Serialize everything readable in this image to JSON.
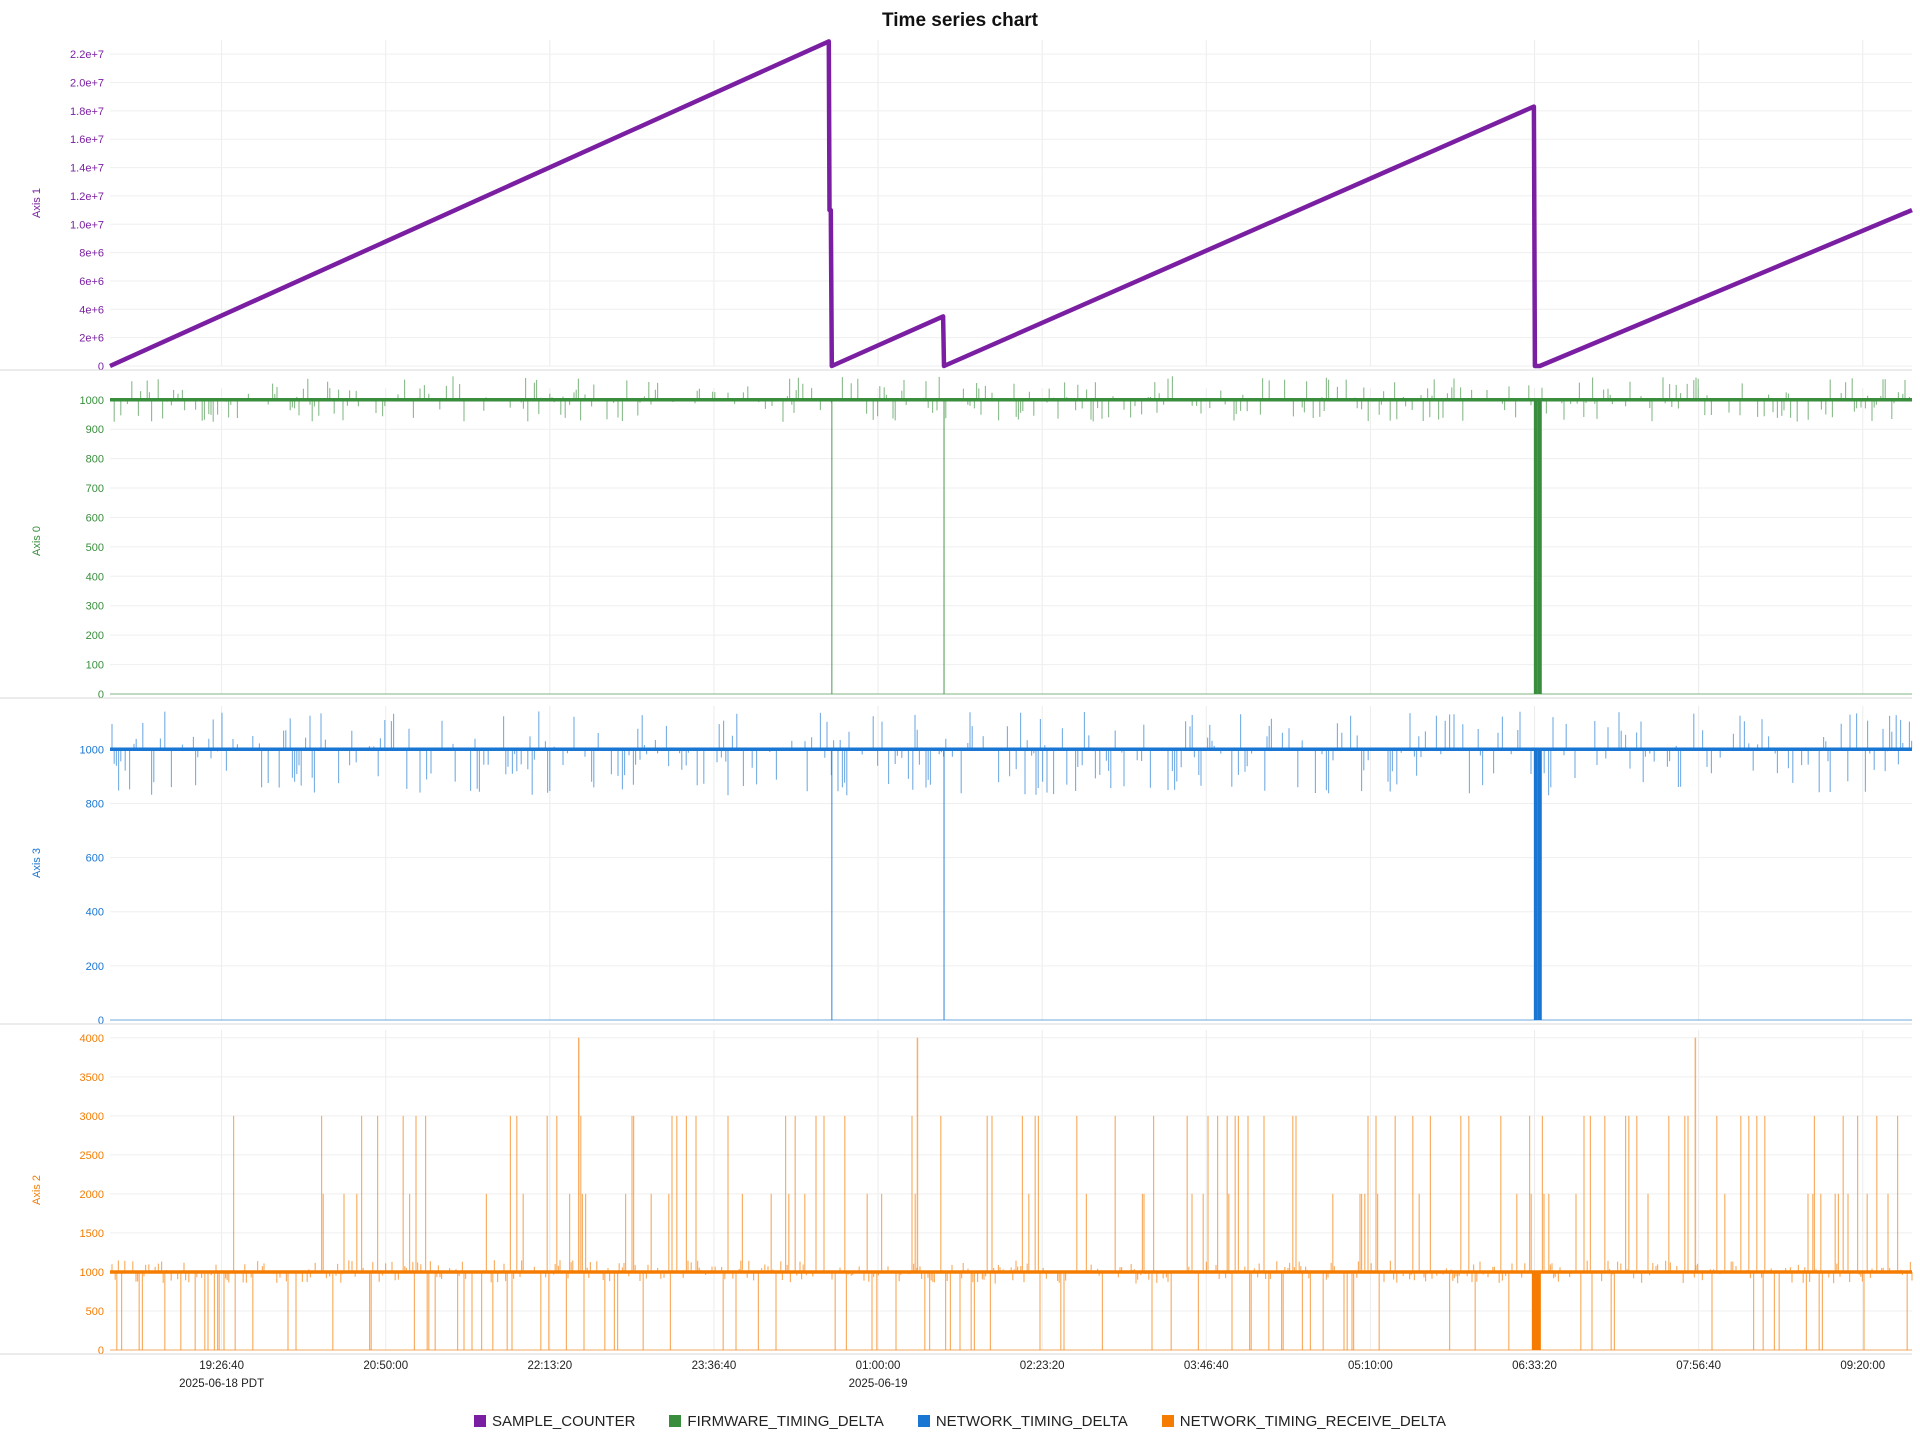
{
  "chart_data": {
    "type": "line",
    "title": "Time series chart",
    "x": {
      "type": "time",
      "range": [
        "2025-06-18T18:30:00",
        "2025-06-19T09:45:00"
      ],
      "ticks": [
        {
          "t": "2025-06-18T19:26:40",
          "label": "19:26:40",
          "sublabel": "2025-06-18 PDT"
        },
        {
          "t": "2025-06-18T20:50:00",
          "label": "20:50:00",
          "sublabel": ""
        },
        {
          "t": "2025-06-18T22:13:20",
          "label": "22:13:20",
          "sublabel": ""
        },
        {
          "t": "2025-06-18T23:36:40",
          "label": "23:36:40",
          "sublabel": ""
        },
        {
          "t": "2025-06-19T01:00:00",
          "label": "01:00:00",
          "sublabel": "2025-06-19"
        },
        {
          "t": "2025-06-19T02:23:20",
          "label": "02:23:20",
          "sublabel": ""
        },
        {
          "t": "2025-06-19T03:46:40",
          "label": "03:46:40",
          "sublabel": ""
        },
        {
          "t": "2025-06-19T05:10:00",
          "label": "05:10:00",
          "sublabel": ""
        },
        {
          "t": "2025-06-19T06:33:20",
          "label": "06:33:20",
          "sublabel": ""
        },
        {
          "t": "2025-06-19T07:56:40",
          "label": "07:56:40",
          "sublabel": ""
        },
        {
          "t": "2025-06-19T09:20:00",
          "label": "09:20:00",
          "sublabel": ""
        }
      ]
    },
    "grid": true,
    "legend_position": "bottom",
    "series": [
      {
        "name": "SAMPLE_COUNTER",
        "color": "#7b1fa2",
        "axis_label": "Axis 1",
        "ylim": [
          0,
          23000000
        ],
        "yticks": [
          {
            "v": 0,
            "label": "0"
          },
          {
            "v": 2000000,
            "label": "2e+6"
          },
          {
            "v": 4000000,
            "label": "4e+6"
          },
          {
            "v": 6000000,
            "label": "6e+6"
          },
          {
            "v": 8000000,
            "label": "8e+6"
          },
          {
            "v": 10000000,
            "label": "1.0e+7"
          },
          {
            "v": 12000000,
            "label": "1.2e+7"
          },
          {
            "v": 14000000,
            "label": "1.4e+7"
          },
          {
            "v": 16000000,
            "label": "1.6e+7"
          },
          {
            "v": 18000000,
            "label": "1.8e+7"
          },
          {
            "v": 20000000,
            "label": "2.0e+7"
          },
          {
            "v": 22000000,
            "label": "2.2e+7"
          }
        ],
        "points": [
          [
            "2025-06-18T18:30:00",
            0
          ],
          [
            "2025-06-19T00:35:00",
            22900000
          ],
          [
            "2025-06-19T00:35:20",
            11000000
          ],
          [
            "2025-06-19T00:36:00",
            11000000
          ],
          [
            "2025-06-19T00:36:30",
            0
          ],
          [
            "2025-06-19T01:33:00",
            3500000
          ],
          [
            "2025-06-19T01:33:30",
            0
          ],
          [
            "2025-06-19T06:33:00",
            18300000
          ],
          [
            "2025-06-19T06:33:30",
            0
          ],
          [
            "2025-06-19T06:36:00",
            0
          ],
          [
            "2025-06-19T09:45:00",
            11000000
          ]
        ]
      },
      {
        "name": "FIRMWARE_TIMING_DELTA",
        "color": "#388e3c",
        "axis_label": "Axis 0",
        "ylim": [
          0,
          1040
        ],
        "yticks": [
          {
            "v": 0,
            "label": "0"
          },
          {
            "v": 100,
            "label": "100"
          },
          {
            "v": 200,
            "label": "200"
          },
          {
            "v": 300,
            "label": "300"
          },
          {
            "v": 400,
            "label": "400"
          },
          {
            "v": 500,
            "label": "500"
          },
          {
            "v": 600,
            "label": "600"
          },
          {
            "v": 700,
            "label": "700"
          },
          {
            "v": 800,
            "label": "800"
          },
          {
            "v": 900,
            "label": "900"
          },
          {
            "v": 1000,
            "label": "1000"
          }
        ],
        "baseline": 1000,
        "jitter_range": [
          925,
          1080
        ],
        "drops_to_zero": [
          "2025-06-19T00:36:30",
          "2025-06-19T01:33:30",
          "2025-06-19T06:34:00",
          "2025-06-19T06:36:00"
        ]
      },
      {
        "name": "NETWORK_TIMING_DELTA",
        "color": "#1976d2",
        "axis_label": "Axis 3",
        "ylim": [
          0,
          1160
        ],
        "yticks": [
          {
            "v": 0,
            "label": "0"
          },
          {
            "v": 200,
            "label": "200"
          },
          {
            "v": 400,
            "label": "400"
          },
          {
            "v": 600,
            "label": "600"
          },
          {
            "v": 800,
            "label": "800"
          },
          {
            "v": 1000,
            "label": "1000"
          }
        ],
        "baseline": 1000,
        "jitter_range": [
          830,
          1140
        ],
        "drops_to_zero": [
          "2025-06-19T00:36:30",
          "2025-06-19T01:33:30",
          "2025-06-19T06:34:00",
          "2025-06-19T06:36:00"
        ]
      },
      {
        "name": "NETWORK_TIMING_RECEIVE_DELTA",
        "color": "#f57c00",
        "axis_label": "Axis 2",
        "ylim": [
          0,
          4100
        ],
        "yticks": [
          {
            "v": 0,
            "label": "0"
          },
          {
            "v": 500,
            "label": "500"
          },
          {
            "v": 1000,
            "label": "1000"
          },
          {
            "v": 1500,
            "label": "1500"
          },
          {
            "v": 2000,
            "label": "2000"
          },
          {
            "v": 2500,
            "label": "2500"
          },
          {
            "v": 3000,
            "label": "3000"
          },
          {
            "v": 3500,
            "label": "3500"
          },
          {
            "v": 4000,
            "label": "4000"
          }
        ],
        "baseline": 1000,
        "spike_levels": [
          0,
          2000,
          3000,
          4000
        ],
        "peaks_4000": [
          "2025-06-18T22:28:00",
          "2025-06-19T01:20:00",
          "2025-06-19T07:55:00"
        ]
      }
    ]
  },
  "legend": {
    "items": [
      {
        "label": "SAMPLE_COUNTER",
        "color": "#7b1fa2"
      },
      {
        "label": "FIRMWARE_TIMING_DELTA",
        "color": "#388e3c"
      },
      {
        "label": "NETWORK_TIMING_DELTA",
        "color": "#1976d2"
      },
      {
        "label": "NETWORK_TIMING_RECEIVE_DELTA",
        "color": "#f57c00"
      }
    ]
  }
}
